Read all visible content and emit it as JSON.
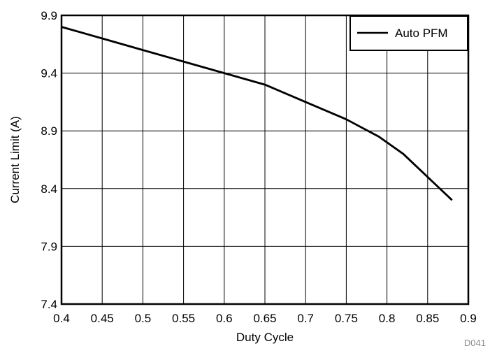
{
  "chart_data": {
    "type": "line",
    "title": "",
    "xlabel": "Duty Cycle",
    "ylabel": "Current Limit (A)",
    "xlim": [
      0.4,
      0.9
    ],
    "ylim": [
      7.4,
      9.9
    ],
    "x_ticks": [
      "0.4",
      "0.45",
      "0.5",
      "0.55",
      "0.6",
      "0.65",
      "0.7",
      "0.75",
      "0.8",
      "0.85",
      "0.9"
    ],
    "y_ticks": [
      "7.4",
      "7.9",
      "8.4",
      "8.9",
      "9.4",
      "9.9"
    ],
    "grid": true,
    "legend_position": "top-right",
    "series": [
      {
        "name": "Auto PFM",
        "color": "#000000",
        "x": [
          0.4,
          0.45,
          0.5,
          0.55,
          0.6,
          0.65,
          0.7,
          0.75,
          0.79,
          0.82,
          0.88
        ],
        "y": [
          9.8,
          9.7,
          9.6,
          9.5,
          9.4,
          9.3,
          9.15,
          9.0,
          8.85,
          8.7,
          8.3
        ]
      }
    ]
  },
  "figure_id": "D041"
}
